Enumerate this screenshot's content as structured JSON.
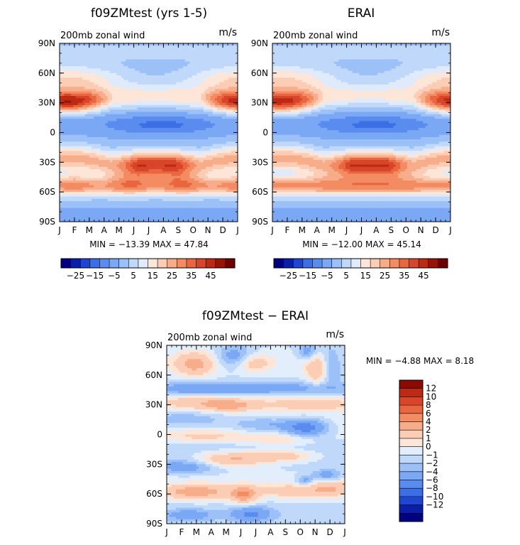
{
  "chart_data": [
    {
      "type": "heatmap",
      "id": "model",
      "title": "f09ZMtest (yrs 1-5)",
      "subtitle": "200mb zonal wind",
      "units": "m/s",
      "x_ticks": [
        "J",
        "F",
        "M",
        "A",
        "M",
        "J",
        "J",
        "A",
        "S",
        "O",
        "N",
        "D",
        "J"
      ],
      "y_ticks": [
        "90N",
        "60N",
        "30N",
        "0",
        "30S",
        "60S",
        "90S"
      ],
      "min_max": "MIN = −13.39 MAX =  47.84",
      "colorbar_labels": [
        "−25",
        "−15",
        "−5",
        "5",
        "15",
        "25",
        "35",
        "45"
      ],
      "colorbar_orientation": "horizontal",
      "z_range": [
        -13.39,
        47.84
      ]
    },
    {
      "type": "heatmap",
      "id": "erai",
      "title": "ERAI",
      "subtitle": "200mb zonal wind",
      "units": "m/s",
      "x_ticks": [
        "J",
        "F",
        "M",
        "A",
        "M",
        "J",
        "J",
        "A",
        "S",
        "O",
        "N",
        "D",
        "J"
      ],
      "y_ticks": [
        "90N",
        "60N",
        "30N",
        "0",
        "30S",
        "60S",
        "90S"
      ],
      "min_max": "MIN = −12.00 MAX =  45.14",
      "colorbar_labels": [
        "−25",
        "−15",
        "−5",
        "5",
        "15",
        "25",
        "35",
        "45"
      ],
      "colorbar_orientation": "horizontal",
      "z_range": [
        -12.0,
        45.14
      ]
    },
    {
      "type": "heatmap",
      "id": "diff",
      "title": "f09ZMtest − ERAI",
      "subtitle": "200mb zonal wind",
      "units": "m/s",
      "x_ticks": [
        "J",
        "F",
        "M",
        "A",
        "M",
        "J",
        "J",
        "A",
        "S",
        "O",
        "N",
        "D",
        "J"
      ],
      "y_ticks": [
        "90N",
        "60N",
        "30N",
        "0",
        "30S",
        "60S",
        "90S"
      ],
      "min_max": "MIN =  −4.88 MAX =   8.18",
      "colorbar_labels": [
        "12",
        "10",
        "8",
        "6",
        "4",
        "2",
        "1",
        "0",
        "−1",
        "−2",
        "−4",
        "−6",
        "−8",
        "−10",
        "−12"
      ],
      "colorbar_orientation": "vertical",
      "z_range": [
        -4.88,
        8.18
      ]
    }
  ],
  "colors": {
    "full_palette": [
      "#000080",
      "#0a1ea8",
      "#1e46d2",
      "#3c6ee6",
      "#5a8cf0",
      "#7aa8f5",
      "#9cc0f8",
      "#c0d8fa",
      "#dfeafb",
      "#fde6d8",
      "#fbcdb4",
      "#f8ad8a",
      "#f38b63",
      "#ea6641",
      "#d8452a",
      "#bd2a14",
      "#961306",
      "#6e0000"
    ],
    "diff_palette": [
      "#000080",
      "#0a1ea8",
      "#1e46d2",
      "#3c6ee6",
      "#5a8cf0",
      "#7aa8f5",
      "#9cc0f8",
      "#c0d8fa",
      "#e3eefc",
      "#fde6d8",
      "#fbcdb4",
      "#f8ad8a",
      "#f38b63",
      "#ea6641",
      "#d8452a",
      "#bd2a14",
      "#8b0a02"
    ]
  }
}
